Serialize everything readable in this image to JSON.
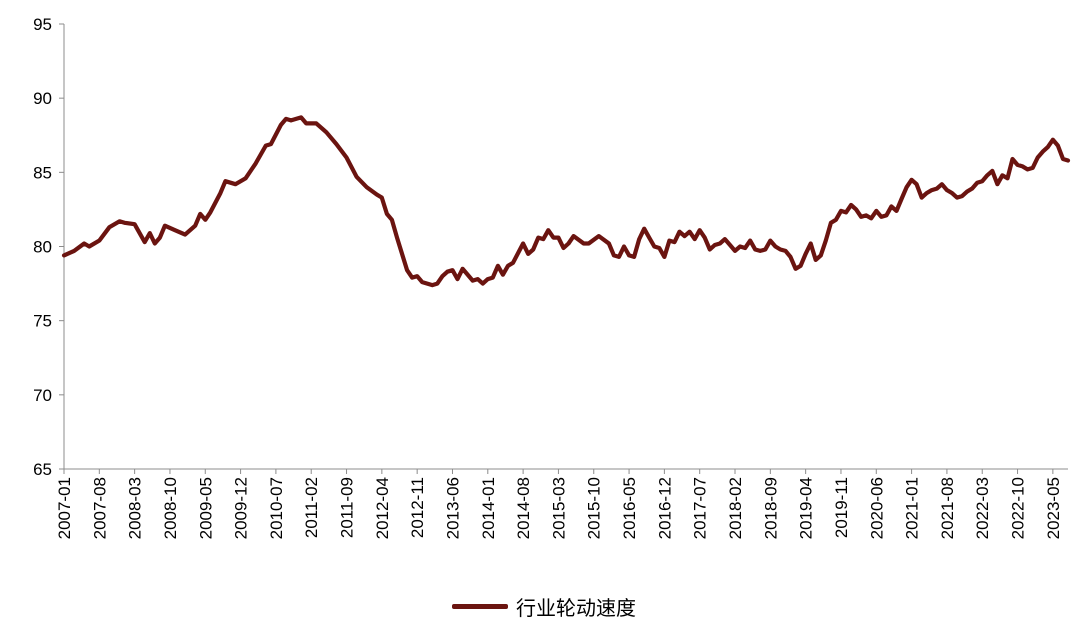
{
  "chart_data": {
    "type": "line",
    "title": "",
    "xlabel": "",
    "ylabel": "",
    "ylim": [
      65,
      95
    ],
    "yticks": [
      65,
      70,
      75,
      80,
      85,
      90,
      95
    ],
    "xtick_labels": [
      "2007-01",
      "2007-08",
      "2008-03",
      "2008-10",
      "2009-05",
      "2009-12",
      "2010-07",
      "2011-02",
      "2011-09",
      "2012-04",
      "2012-11",
      "2013-06",
      "2014-01",
      "2014-08",
      "2015-03",
      "2015-10",
      "2016-05",
      "2016-12",
      "2017-07",
      "2018-02",
      "2018-09",
      "2019-04",
      "2019-11",
      "2020-06",
      "2021-01",
      "2021-08",
      "2022-03",
      "2022-10",
      "2023-05"
    ],
    "x_start": "2007-01",
    "x_end": "2023-08",
    "grid": false,
    "legend_position": "bottom-center",
    "series": [
      {
        "name": "行业轮动速度",
        "color": "#6b1410",
        "points": [
          [
            "2007-01",
            79.4
          ],
          [
            "2007-03",
            79.7
          ],
          [
            "2007-05",
            80.2
          ],
          [
            "2007-06",
            80.0
          ],
          [
            "2007-08",
            80.4
          ],
          [
            "2007-10",
            81.3
          ],
          [
            "2007-12",
            81.7
          ],
          [
            "2008-01",
            81.6
          ],
          [
            "2008-03",
            81.5
          ],
          [
            "2008-05",
            80.3
          ],
          [
            "2008-06",
            80.9
          ],
          [
            "2008-07",
            80.2
          ],
          [
            "2008-08",
            80.6
          ],
          [
            "2008-09",
            81.4
          ],
          [
            "2008-11",
            81.1
          ],
          [
            "2009-01",
            80.8
          ],
          [
            "2009-03",
            81.4
          ],
          [
            "2009-04",
            82.2
          ],
          [
            "2009-05",
            81.8
          ],
          [
            "2009-06",
            82.3
          ],
          [
            "2009-08",
            83.6
          ],
          [
            "2009-09",
            84.4
          ],
          [
            "2009-11",
            84.2
          ],
          [
            "2010-01",
            84.6
          ],
          [
            "2010-03",
            85.6
          ],
          [
            "2010-05",
            86.8
          ],
          [
            "2010-06",
            86.9
          ],
          [
            "2010-08",
            88.2
          ],
          [
            "2010-09",
            88.6
          ],
          [
            "2010-10",
            88.5
          ],
          [
            "2010-12",
            88.7
          ],
          [
            "2011-01",
            88.3
          ],
          [
            "2011-03",
            88.3
          ],
          [
            "2011-05",
            87.7
          ],
          [
            "2011-07",
            86.9
          ],
          [
            "2011-09",
            86.0
          ],
          [
            "2011-11",
            84.7
          ],
          [
            "2012-01",
            84.0
          ],
          [
            "2012-03",
            83.5
          ],
          [
            "2012-04",
            83.3
          ],
          [
            "2012-05",
            82.2
          ],
          [
            "2012-06",
            81.8
          ],
          [
            "2012-07",
            80.6
          ],
          [
            "2012-09",
            78.4
          ],
          [
            "2012-10",
            77.9
          ],
          [
            "2012-11",
            78.0
          ],
          [
            "2012-12",
            77.6
          ],
          [
            "2013-02",
            77.4
          ],
          [
            "2013-03",
            77.5
          ],
          [
            "2013-04",
            78.0
          ],
          [
            "2013-05",
            78.3
          ],
          [
            "2013-06",
            78.4
          ],
          [
            "2013-07",
            77.8
          ],
          [
            "2013-08",
            78.5
          ],
          [
            "2013-10",
            77.7
          ],
          [
            "2013-11",
            77.8
          ],
          [
            "2013-12",
            77.5
          ],
          [
            "2014-01",
            77.8
          ],
          [
            "2014-02",
            77.9
          ],
          [
            "2014-03",
            78.7
          ],
          [
            "2014-04",
            78.1
          ],
          [
            "2014-05",
            78.7
          ],
          [
            "2014-06",
            78.9
          ],
          [
            "2014-08",
            80.2
          ],
          [
            "2014-09",
            79.5
          ],
          [
            "2014-10",
            79.8
          ],
          [
            "2014-11",
            80.6
          ],
          [
            "2014-12",
            80.5
          ],
          [
            "2015-01",
            81.1
          ],
          [
            "2015-02",
            80.6
          ],
          [
            "2015-03",
            80.6
          ],
          [
            "2015-04",
            79.9
          ],
          [
            "2015-05",
            80.2
          ],
          [
            "2015-06",
            80.7
          ],
          [
            "2015-08",
            80.2
          ],
          [
            "2015-09",
            80.2
          ],
          [
            "2015-11",
            80.7
          ],
          [
            "2016-01",
            80.2
          ],
          [
            "2016-02",
            79.4
          ],
          [
            "2016-03",
            79.3
          ],
          [
            "2016-04",
            80.0
          ],
          [
            "2016-05",
            79.4
          ],
          [
            "2016-06",
            79.3
          ],
          [
            "2016-07",
            80.5
          ],
          [
            "2016-08",
            81.2
          ],
          [
            "2016-09",
            80.6
          ],
          [
            "2016-10",
            80.0
          ],
          [
            "2016-11",
            79.9
          ],
          [
            "2016-12",
            79.3
          ],
          [
            "2017-01",
            80.4
          ],
          [
            "2017-02",
            80.3
          ],
          [
            "2017-03",
            81.0
          ],
          [
            "2017-04",
            80.7
          ],
          [
            "2017-05",
            81.0
          ],
          [
            "2017-06",
            80.5
          ],
          [
            "2017-07",
            81.1
          ],
          [
            "2017-08",
            80.6
          ],
          [
            "2017-09",
            79.8
          ],
          [
            "2017-10",
            80.1
          ],
          [
            "2017-11",
            80.2
          ],
          [
            "2017-12",
            80.5
          ],
          [
            "2018-01",
            80.1
          ],
          [
            "2018-02",
            79.7
          ],
          [
            "2018-03",
            80.0
          ],
          [
            "2018-04",
            79.9
          ],
          [
            "2018-05",
            80.4
          ],
          [
            "2018-06",
            79.8
          ],
          [
            "2018-07",
            79.7
          ],
          [
            "2018-08",
            79.8
          ],
          [
            "2018-09",
            80.4
          ],
          [
            "2018-10",
            80.0
          ],
          [
            "2018-11",
            79.8
          ],
          [
            "2018-12",
            79.7
          ],
          [
            "2019-01",
            79.3
          ],
          [
            "2019-02",
            78.5
          ],
          [
            "2019-03",
            78.7
          ],
          [
            "2019-04",
            79.5
          ],
          [
            "2019-05",
            80.2
          ],
          [
            "2019-06",
            79.1
          ],
          [
            "2019-07",
            79.4
          ],
          [
            "2019-08",
            80.4
          ],
          [
            "2019-09",
            81.6
          ],
          [
            "2019-10",
            81.8
          ],
          [
            "2019-11",
            82.4
          ],
          [
            "2019-12",
            82.3
          ],
          [
            "2020-01",
            82.8
          ],
          [
            "2020-02",
            82.5
          ],
          [
            "2020-03",
            82.0
          ],
          [
            "2020-04",
            82.1
          ],
          [
            "2020-05",
            81.9
          ],
          [
            "2020-06",
            82.4
          ],
          [
            "2020-07",
            82.0
          ],
          [
            "2020-08",
            82.1
          ],
          [
            "2020-09",
            82.7
          ],
          [
            "2020-10",
            82.4
          ],
          [
            "2020-11",
            83.2
          ],
          [
            "2020-12",
            84.0
          ],
          [
            "2021-01",
            84.5
          ],
          [
            "2021-02",
            84.2
          ],
          [
            "2021-03",
            83.3
          ],
          [
            "2021-04",
            83.6
          ],
          [
            "2021-05",
            83.8
          ],
          [
            "2021-06",
            83.9
          ],
          [
            "2021-07",
            84.2
          ],
          [
            "2021-08",
            83.8
          ],
          [
            "2021-09",
            83.6
          ],
          [
            "2021-10",
            83.3
          ],
          [
            "2021-11",
            83.4
          ],
          [
            "2021-12",
            83.7
          ],
          [
            "2022-01",
            83.9
          ],
          [
            "2022-02",
            84.3
          ],
          [
            "2022-03",
            84.4
          ],
          [
            "2022-04",
            84.8
          ],
          [
            "2022-05",
            85.1
          ],
          [
            "2022-06",
            84.2
          ],
          [
            "2022-07",
            84.8
          ],
          [
            "2022-08",
            84.6
          ],
          [
            "2022-09",
            85.9
          ],
          [
            "2022-10",
            85.5
          ],
          [
            "2022-11",
            85.4
          ],
          [
            "2022-12",
            85.2
          ],
          [
            "2023-01",
            85.3
          ],
          [
            "2023-02",
            86.0
          ],
          [
            "2023-03",
            86.4
          ],
          [
            "2023-04",
            86.7
          ],
          [
            "2023-05",
            87.2
          ],
          [
            "2023-06",
            86.8
          ],
          [
            "2023-07",
            85.9
          ],
          [
            "2023-08",
            85.8
          ]
        ]
      }
    ]
  }
}
